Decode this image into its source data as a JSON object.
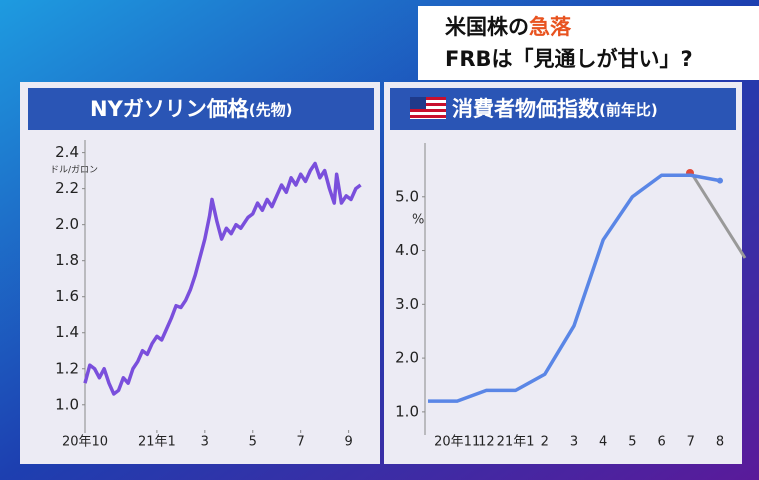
{
  "headline": {
    "line1": [
      "米国株の",
      "急落"
    ],
    "line2": "FRBは「見通しが甘い」?"
  },
  "chart_data": [
    {
      "type": "line",
      "title": "NYガソリン価格",
      "subtitle": "(先物)",
      "y_label": "ドル/ガロン",
      "x": [
        0,
        0.2,
        0.4,
        0.6,
        0.8,
        1.0,
        1.2,
        1.4,
        1.6,
        1.8,
        2.0,
        2.2,
        2.4,
        2.6,
        2.8,
        3.0,
        3.2,
        3.4,
        3.6,
        3.8,
        4.0,
        4.2,
        4.4,
        4.6,
        4.8,
        5.0,
        5.2,
        5.3,
        5.5,
        5.7,
        5.9,
        6.1,
        6.3,
        6.5,
        6.8,
        7.0,
        7.2,
        7.4,
        7.6,
        7.8,
        8.0,
        8.2,
        8.4,
        8.6,
        8.8,
        9.0,
        9.2,
        9.4,
        9.6,
        9.8,
        10.0,
        10.2,
        10.4,
        10.5,
        10.7,
        10.9,
        11.1,
        11.3,
        11.5
      ],
      "series": [
        {
          "color": "#7a4fdc",
          "values": [
            1.12,
            1.22,
            1.2,
            1.15,
            1.2,
            1.12,
            1.06,
            1.08,
            1.15,
            1.12,
            1.2,
            1.24,
            1.3,
            1.28,
            1.34,
            1.38,
            1.36,
            1.42,
            1.48,
            1.55,
            1.54,
            1.58,
            1.64,
            1.72,
            1.82,
            1.92,
            2.05,
            2.14,
            2.02,
            1.92,
            1.98,
            1.95,
            2.0,
            1.98,
            2.04,
            2.06,
            2.12,
            2.08,
            2.14,
            2.1,
            2.16,
            2.22,
            2.18,
            2.26,
            2.22,
            2.28,
            2.24,
            2.3,
            2.34,
            2.26,
            2.3,
            2.2,
            2.12,
            2.28,
            2.12,
            2.16,
            2.14,
            2.2,
            2.22
          ]
        }
      ],
      "xlim": [
        0,
        11.6
      ],
      "xticks": [
        {
          "value": 0,
          "label": "20年10"
        },
        {
          "value": 3,
          "label": "21年1"
        },
        {
          "value": 5,
          "label": "3"
        },
        {
          "value": 7,
          "label": "5"
        },
        {
          "value": 9,
          "label": "7"
        },
        {
          "value": 11,
          "label": "9"
        }
      ],
      "ylim": [
        0.86,
        2.47
      ],
      "yticks": [
        {
          "value": 1,
          "label": "1.0"
        },
        1.2,
        1.4,
        1.6,
        1.8,
        {
          "value": 2,
          "label": "2.0"
        },
        2.2,
        2.4
      ]
    },
    {
      "type": "line",
      "title": "消費者物価指数",
      "subtitle": "(前年比)",
      "y_label": "%",
      "categories": [
        null,
        "20年11",
        "12",
        "21年1",
        "2",
        "3",
        "4",
        "5",
        "6",
        "7",
        "8"
      ],
      "series": [
        {
          "color": "#5a86e6",
          "values": [
            1.2,
            1.2,
            1.4,
            1.4,
            1.7,
            2.6,
            4.2,
            5.0,
            5.4,
            5.4,
            5.3
          ]
        }
      ],
      "ylim": [
        0.57,
        6.0
      ],
      "yticks": [
        {
          "value": 1,
          "label": "1.0"
        },
        {
          "value": 2,
          "label": "2.0"
        },
        {
          "value": 3,
          "label": "3.0"
        },
        {
          "value": 4,
          "label": "4.0"
        },
        {
          "value": 5,
          "label": "5.0"
        }
      ]
    }
  ]
}
